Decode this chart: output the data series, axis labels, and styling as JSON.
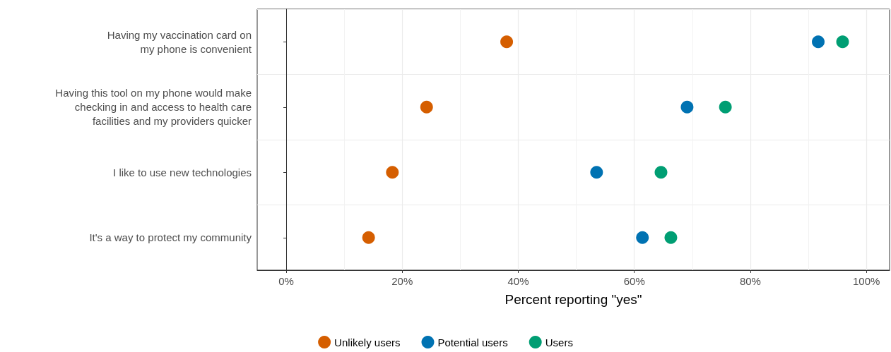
{
  "chart_data": {
    "type": "scatter",
    "orientation": "horizontal",
    "xlabel": "Percent reporting \"yes\"",
    "categories": [
      "Having my vaccination card on\nmy phone is convenient",
      "Having this tool on my phone would make\nchecking in and access to health care\nfacilities and my providers quicker",
      "I like to use new technologies",
      "It's a way to protect my community"
    ],
    "series": [
      {
        "name": "Unlikely users",
        "color": "#d55e00",
        "values": [
          38,
          24.2,
          18.3,
          14.2
        ]
      },
      {
        "name": "Potential users",
        "color": "#0072b2",
        "values": [
          91.7,
          69.1,
          53.5,
          61.4
        ]
      },
      {
        "name": "Users",
        "color": "#009e73",
        "values": [
          95.9,
          75.7,
          64.6,
          66.3
        ]
      }
    ],
    "xlim": [
      -5,
      104
    ],
    "xticks": [
      {
        "value": 0,
        "label": "0%"
      },
      {
        "value": 20,
        "label": "20%"
      },
      {
        "value": 40,
        "label": "40%"
      },
      {
        "value": 60,
        "label": "60%"
      },
      {
        "value": 80,
        "label": "80%"
      },
      {
        "value": 100,
        "label": "100%"
      }
    ],
    "grid": true,
    "legend": "bottom",
    "marker": "circle"
  }
}
